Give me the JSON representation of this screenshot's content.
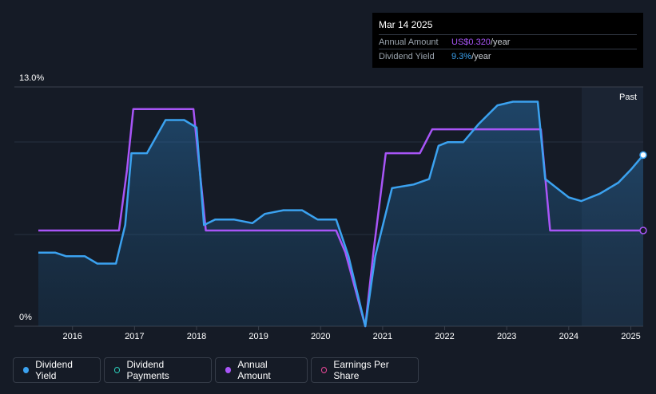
{
  "chart_data": {
    "type": "line",
    "x_ticks": [
      "2016",
      "2017",
      "2018",
      "2019",
      "2020",
      "2021",
      "2022",
      "2023",
      "2024",
      "2025"
    ],
    "y_ticks": [
      "0%",
      "13.0%"
    ],
    "ylim": [
      0,
      13.0
    ],
    "forecast_label": "Past",
    "grid": true,
    "series": [
      {
        "name": "Dividend Yield",
        "color": "#3ba2f0",
        "points": [
          [
            2015.45,
            4.0
          ],
          [
            2015.72,
            4.0
          ],
          [
            2015.9,
            3.8
          ],
          [
            2016.2,
            3.8
          ],
          [
            2016.4,
            3.4
          ],
          [
            2016.7,
            3.4
          ],
          [
            2016.85,
            5.5
          ],
          [
            2016.95,
            9.4
          ],
          [
            2017.2,
            9.4
          ],
          [
            2017.5,
            11.2
          ],
          [
            2017.8,
            11.2
          ],
          [
            2018.0,
            10.8
          ],
          [
            2018.12,
            5.5
          ],
          [
            2018.3,
            5.8
          ],
          [
            2018.6,
            5.8
          ],
          [
            2018.9,
            5.6
          ],
          [
            2019.1,
            6.1
          ],
          [
            2019.4,
            6.3
          ],
          [
            2019.7,
            6.3
          ],
          [
            2019.95,
            5.8
          ],
          [
            2020.25,
            5.8
          ],
          [
            2020.45,
            3.8
          ],
          [
            2020.72,
            0.0
          ],
          [
            2020.88,
            3.8
          ],
          [
            2021.15,
            7.5
          ],
          [
            2021.5,
            7.7
          ],
          [
            2021.75,
            8.0
          ],
          [
            2021.9,
            9.8
          ],
          [
            2022.05,
            10.0
          ],
          [
            2022.3,
            10.0
          ],
          [
            2022.55,
            11.0
          ],
          [
            2022.85,
            12.0
          ],
          [
            2023.1,
            12.2
          ],
          [
            2023.5,
            12.2
          ],
          [
            2023.62,
            8.0
          ],
          [
            2024.0,
            7.0
          ],
          [
            2024.2,
            6.8
          ],
          [
            2024.5,
            7.2
          ],
          [
            2024.8,
            7.8
          ],
          [
            2025.0,
            8.5
          ],
          [
            2025.2,
            9.3
          ]
        ]
      },
      {
        "name": "Annual Amount",
        "color": "#a855f7",
        "points": [
          [
            2015.45,
            5.2
          ],
          [
            2016.75,
            5.2
          ],
          [
            2016.88,
            8.5
          ],
          [
            2016.98,
            11.8
          ],
          [
            2017.95,
            11.8
          ],
          [
            2018.05,
            8.5
          ],
          [
            2018.15,
            5.2
          ],
          [
            2020.25,
            5.2
          ],
          [
            2020.4,
            4.0
          ],
          [
            2020.72,
            0.0
          ],
          [
            2020.85,
            4.0
          ],
          [
            2021.05,
            9.4
          ],
          [
            2021.6,
            9.4
          ],
          [
            2021.8,
            10.7
          ],
          [
            2023.55,
            10.7
          ],
          [
            2023.7,
            5.2
          ],
          [
            2025.2,
            5.2
          ]
        ]
      }
    ]
  },
  "tooltip": {
    "date": "Mar 14 2025",
    "rows": [
      {
        "label": "Annual Amount",
        "value": "US$0.320",
        "unit": "/year"
      },
      {
        "label": "Dividend Yield",
        "value": "9.3%",
        "unit": "/year"
      }
    ]
  },
  "legend": [
    {
      "label": "Dividend Yield",
      "color": "#3ba2f0",
      "filled": true
    },
    {
      "label": "Dividend Payments",
      "color": "#2dd4bf",
      "filled": false
    },
    {
      "label": "Annual Amount",
      "color": "#a855f7",
      "filled": true
    },
    {
      "label": "Earnings Per Share",
      "color": "#ec4899",
      "filled": false
    }
  ]
}
